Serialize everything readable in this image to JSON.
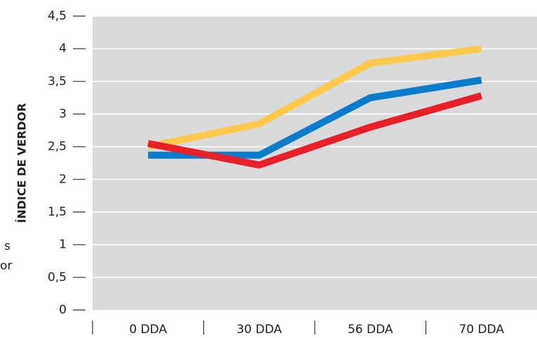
{
  "chart_data": {
    "type": "line",
    "y_label": "ÍNDICE DE VERDOR",
    "annotations": [
      "s",
      "or"
    ],
    "categories": [
      "0 DDA",
      "30 DDA",
      "56 DDA",
      "70 DDA"
    ],
    "series": [
      {
        "color": "#fec84a",
        "values": [
          2.5,
          2.85,
          3.78,
          4.0
        ]
      },
      {
        "color": "#0a7ccc",
        "values": [
          2.37,
          2.37,
          3.25,
          3.52
        ]
      },
      {
        "color": "#e8202a",
        "values": [
          2.55,
          2.22,
          2.8,
          3.28
        ]
      }
    ],
    "ylim": [
      0,
      4.5
    ],
    "yticks": [
      0,
      {
        "value": 0.5,
        "label": "0,5"
      },
      1,
      {
        "value": 1.5,
        "label": "1,5"
      },
      2,
      {
        "value": 2.5,
        "label": "2,5"
      },
      3,
      {
        "value": 3.5,
        "label": "3,5"
      },
      4,
      {
        "value": 4.5,
        "label": "4,5"
      }
    ],
    "grid": true,
    "background": "#d9dadb"
  }
}
